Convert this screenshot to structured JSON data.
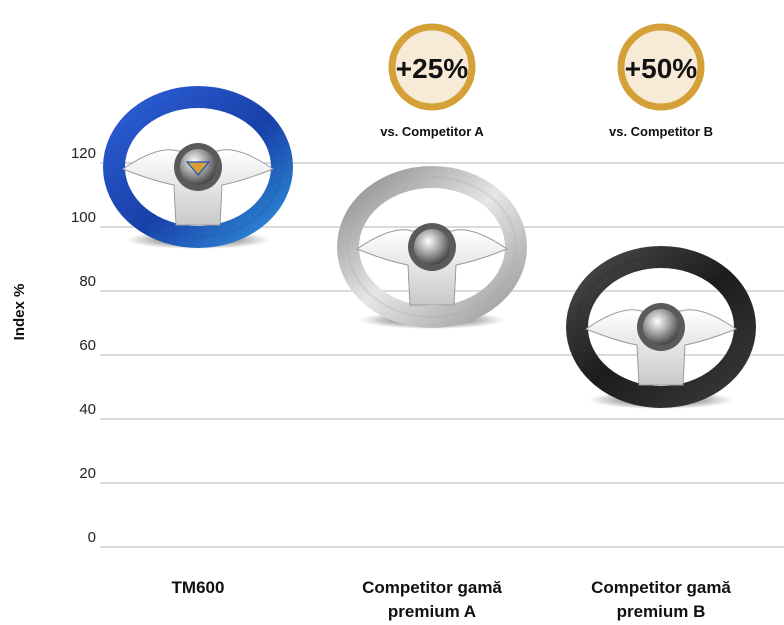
{
  "chart_data": {
    "type": "scatter",
    "title": "",
    "ylabel": "Index %",
    "xlabel": "",
    "ylim": [
      0,
      130
    ],
    "yticks": [
      0,
      20,
      40,
      60,
      80,
      100,
      120
    ],
    "grid": true,
    "categories": [
      "TM600",
      "Competitor gamă premium A",
      "Competitor gamă premium B"
    ],
    "values": [
      100,
      75,
      50
    ],
    "marker_icons": [
      "steering-wheel-blue-icon",
      "steering-wheel-silver-icon",
      "steering-wheel-black-icon"
    ],
    "marker_colors": [
      "#1f4fb8",
      "#a9a9a9",
      "#2b2b2b"
    ],
    "annotations": [
      {
        "category_index": 1,
        "label": "+25%",
        "sublabel": "vs. Competitor A"
      },
      {
        "category_index": 2,
        "label": "+50%",
        "sublabel": "vs. Competitor B"
      }
    ],
    "badge_color": "#f7ead6",
    "badge_ring_color": "#d4a037"
  }
}
